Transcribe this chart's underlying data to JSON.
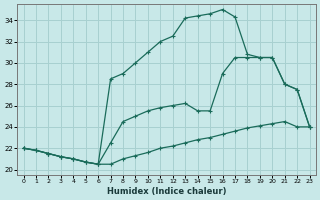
{
  "xlabel": "Humidex (Indice chaleur)",
  "bg_color": "#c8e8e8",
  "grid_color": "#a8d0d0",
  "line_color": "#1a6b5a",
  "xlim": [
    -0.5,
    23.5
  ],
  "ylim": [
    19.5,
    35.5
  ],
  "xticks": [
    0,
    1,
    2,
    3,
    4,
    5,
    6,
    7,
    8,
    9,
    10,
    11,
    12,
    13,
    14,
    15,
    16,
    17,
    18,
    19,
    20,
    21,
    22,
    23
  ],
  "yticks": [
    20,
    22,
    24,
    26,
    28,
    30,
    32,
    34
  ],
  "line1_x": [
    0,
    1,
    2,
    3,
    4,
    5,
    6,
    7,
    8,
    9,
    10,
    11,
    12,
    13,
    14,
    15,
    16,
    17,
    18,
    19,
    20,
    21,
    22,
    23
  ],
  "line1_y": [
    22.0,
    21.8,
    21.5,
    21.2,
    21.0,
    20.7,
    20.5,
    20.5,
    21.0,
    21.3,
    21.6,
    22.0,
    22.2,
    22.5,
    22.8,
    23.0,
    23.3,
    23.6,
    23.9,
    24.1,
    24.3,
    24.5,
    24.0,
    24.0
  ],
  "line2_x": [
    0,
    1,
    2,
    3,
    4,
    5,
    6,
    7,
    8,
    9,
    10,
    11,
    12,
    13,
    14,
    15,
    16,
    17,
    18,
    19,
    20,
    21,
    22,
    23
  ],
  "line2_y": [
    22.0,
    21.8,
    21.5,
    21.2,
    21.0,
    20.7,
    20.5,
    28.5,
    29.0,
    30.0,
    31.0,
    32.0,
    32.5,
    34.2,
    34.4,
    34.6,
    35.0,
    34.3,
    30.8,
    30.5,
    30.5,
    28.0,
    27.5,
    24.0
  ],
  "line3_x": [
    0,
    1,
    2,
    3,
    4,
    5,
    6,
    7,
    8,
    9,
    10,
    11,
    12,
    13,
    14,
    15,
    16,
    17,
    18,
    19,
    20,
    21,
    22,
    23
  ],
  "line3_y": [
    22.0,
    21.8,
    21.5,
    21.2,
    21.0,
    20.7,
    20.5,
    22.5,
    24.5,
    25.0,
    25.5,
    25.8,
    26.0,
    26.2,
    25.5,
    25.5,
    29.0,
    30.5,
    30.5,
    30.5,
    30.5,
    28.0,
    27.5,
    24.0
  ]
}
